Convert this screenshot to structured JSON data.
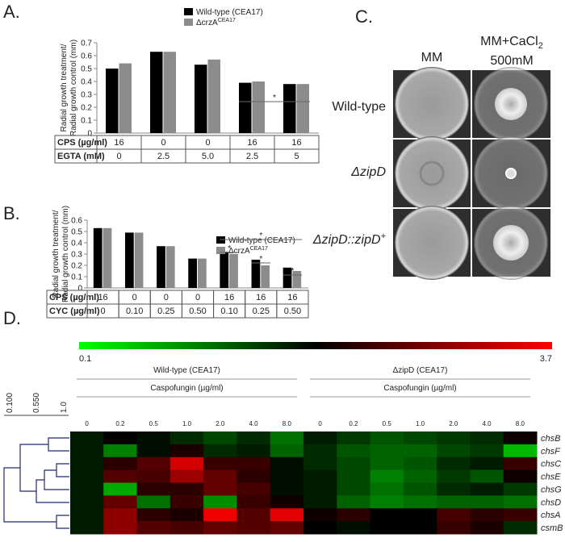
{
  "panel_labels": [
    "A.",
    "B.",
    "C.",
    "D."
  ],
  "chart_data": [
    {
      "type": "bar",
      "ylabel": [
        "Radial growth treatment/",
        "Radial growth control (mm)"
      ],
      "series": [
        {
          "name": "Wild-type (CEA17)",
          "color": "#000000",
          "values": [
            0.5,
            0.63,
            0.53,
            0.39,
            0.38
          ]
        },
        {
          "name": "ΔcrzA",
          "name_sup": "CEA17",
          "color": "#8c8c8c",
          "values": [
            0.54,
            0.63,
            0.57,
            0.4,
            0.38
          ]
        }
      ],
      "ylim": [
        0,
        0.7
      ],
      "yticks": [
        0,
        0.1,
        0.2,
        0.3,
        0.4,
        0.5,
        0.6,
        0.7
      ],
      "annotations": [
        "*"
      ],
      "table": [
        {
          "label": "CPS (µg/ml)",
          "cells": [
            "16",
            "0",
            "0",
            "16",
            "16"
          ]
        },
        {
          "label": "EGTA (mM)",
          "cells": [
            "0",
            "2.5",
            "5.0",
            "2.5",
            "5"
          ]
        }
      ]
    },
    {
      "type": "bar",
      "ylabel": [
        "Radial growth treatment/",
        "Radial growth control (mm)"
      ],
      "series": [
        {
          "name": "Wild-type (CEA17)",
          "color": "#000000",
          "values": [
            0.53,
            0.49,
            0.37,
            0.26,
            0.32,
            0.25,
            0.18
          ]
        },
        {
          "name": "ΔcrzA",
          "name_sup": "CEA17",
          "color": "#8c8c8c",
          "values": [
            0.53,
            0.49,
            0.37,
            0.26,
            0.3,
            0.2,
            0.15
          ]
        }
      ],
      "ylim": [
        0,
        0.6
      ],
      "yticks": [
        0,
        0.1,
        0.2,
        0.3,
        0.4,
        0.5,
        0.6
      ],
      "annotations": [
        "*",
        "*",
        "*",
        "*"
      ],
      "table": [
        {
          "label": "CPS (µg/ml)",
          "cells": [
            "16",
            "0",
            "0",
            "0",
            "16",
            "16",
            "16"
          ]
        },
        {
          "label": "CYC (µg/ml)",
          "cells": [
            "0",
            "0.10",
            "0.25",
            "0.50",
            "0.10",
            "0.25",
            "0.50"
          ]
        }
      ]
    },
    {
      "type": "heatmap",
      "clim": [
        0.1,
        3.7
      ],
      "cticks": [
        0.1,
        3.7
      ],
      "dendrogram_scale": [
        "0.100",
        "0.550",
        "1.0"
      ],
      "rows": [
        "chsB",
        "chsF",
        "chsC",
        "chsE",
        "chsG",
        "chsD",
        "chsA",
        "csmB"
      ],
      "groups": [
        {
          "name": "Wild-type (CEA17)",
          "subtitle": "Caspofungin (µg/ml)",
          "columns": [
            "0",
            "0.2",
            "0.5",
            "1.0",
            "2.0",
            "4.0",
            "8.0"
          ],
          "values": [
            [
              1.7,
              1.9,
              1.8,
              1.6,
              1.4,
              1.6,
              1.1
            ],
            [
              1.7,
              1.0,
              1.8,
              2.1,
              1.6,
              1.7,
              1.2
            ],
            [
              1.7,
              2.2,
              2.5,
              3.4,
              2.3,
              2.3,
              1.8
            ],
            [
              1.7,
              2.5,
              2.4,
              3.0,
              2.6,
              2.2,
              1.8
            ],
            [
              1.7,
              0.7,
              2.2,
              2.2,
              2.6,
              2.4,
              1.8
            ],
            [
              1.7,
              2.6,
              1.1,
              2.3,
              0.9,
              2.3,
              2.0
            ],
            [
              1.7,
              2.9,
              2.2,
              2.1,
              3.6,
              2.5,
              3.5
            ],
            [
              1.7,
              2.9,
              2.5,
              2.4,
              2.6,
              2.5,
              2.6
            ]
          ]
        },
        {
          "name": "ΔzipD (CEA17)",
          "subtitle": "Caspofungin (µg/ml)",
          "columns": [
            "0",
            "0.2",
            "0.5",
            "1.0",
            "2.0",
            "4.0",
            "8.0"
          ],
          "values": [
            [
              1.7,
              1.5,
              1.3,
              1.4,
              1.5,
              1.6,
              2.0
            ],
            [
              1.6,
              1.3,
              1.2,
              1.2,
              1.4,
              1.5,
              0.6
            ],
            [
              1.6,
              1.4,
              1.2,
              1.3,
              1.6,
              1.7,
              2.3
            ],
            [
              1.7,
              1.4,
              1.0,
              1.2,
              1.5,
              1.3,
              2.0
            ],
            [
              1.7,
              1.4,
              1.1,
              1.3,
              1.6,
              1.7,
              1.5
            ],
            [
              1.7,
              1.2,
              1.0,
              1.1,
              1.2,
              1.2,
              1.1
            ],
            [
              2.0,
              2.2,
              1.9,
              1.9,
              2.4,
              2.2,
              2.3
            ],
            [
              1.9,
              1.8,
              1.9,
              1.9,
              2.3,
              2.1,
              1.6
            ]
          ]
        }
      ]
    }
  ],
  "plates": {
    "columns": [
      {
        "text": "MM"
      },
      {
        "text": "MM+CaCl",
        "sub": "2",
        "line2": "500mM"
      }
    ],
    "rows": [
      {
        "text": "Wild-type"
      },
      {
        "text": "ΔzipD"
      },
      {
        "text": "ΔzipD::zipD",
        "sup": "+"
      }
    ]
  }
}
